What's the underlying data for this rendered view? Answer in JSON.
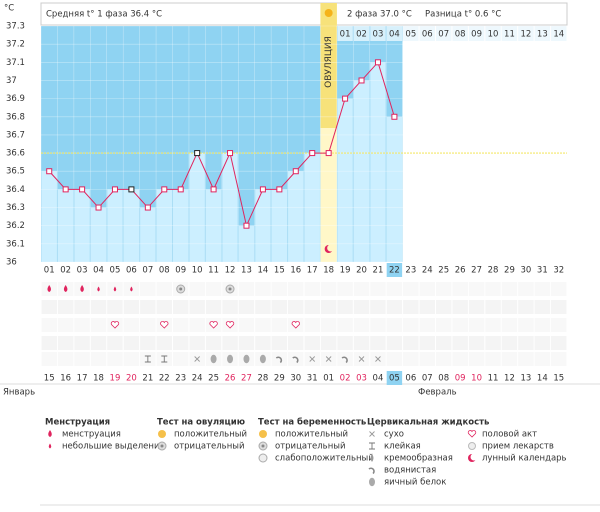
{
  "chart_data": {
    "type": "line",
    "y_label": "°C",
    "header": {
      "phase1": "Средняя t° 1 фаза 36.4 °C",
      "phase2": "2 фаза 37.0 °C",
      "difference": "Разница t° 0.6 °C"
    },
    "ovulation_label": "ОВУЛЯЦИЯ",
    "ovulation_day": 18,
    "coverline": 36.6,
    "categories": [
      "01",
      "02",
      "03",
      "04",
      "05",
      "06",
      "07",
      "08",
      "09",
      "10",
      "11",
      "12",
      "13",
      "14",
      "15",
      "16",
      "17",
      "18",
      "19",
      "20",
      "21",
      "22",
      "23",
      "24",
      "25",
      "26",
      "27",
      "28",
      "29",
      "30",
      "31",
      "32"
    ],
    "values": [
      36.5,
      36.4,
      36.4,
      36.3,
      36.4,
      36.4,
      36.3,
      36.4,
      36.4,
      36.6,
      36.4,
      36.6,
      36.2,
      36.4,
      36.4,
      36.5,
      36.6,
      36.6,
      36.9,
      37.0,
      37.1,
      36.8,
      null,
      null,
      null,
      null,
      null,
      null,
      null,
      null,
      null,
      null
    ],
    "phase2_days": [
      "01",
      "02",
      "03",
      "04",
      "05",
      "06",
      "07",
      "08",
      "09",
      "10",
      "11",
      "12",
      "13",
      "14"
    ],
    "ylim": [
      36,
      37.3
    ],
    "yticks": [
      36,
      36.1,
      36.2,
      36.3,
      36.4,
      36.5,
      36.6,
      36.7,
      36.8,
      36.9,
      37,
      37.1,
      37.2,
      37.3
    ],
    "dates": [
      "15",
      "16",
      "17",
      "18",
      "19",
      "20",
      "21",
      "22",
      "23",
      "24",
      "25",
      "26",
      "27",
      "28",
      "29",
      "30",
      "31",
      "01",
      "02",
      "03",
      "04",
      "05",
      "06",
      "07",
      "08",
      "09",
      "10",
      "11",
      "12",
      "13",
      "14",
      "15"
    ],
    "date_colors": [
      "#333",
      "#333",
      "#333",
      "#333",
      "#e0245e",
      "#e0245e",
      "#333",
      "#333",
      "#333",
      "#333",
      "#333",
      "#e0245e",
      "#e0245e",
      "#333",
      "#333",
      "#333",
      "#333",
      "#333",
      "#e0245e",
      "#e0245e",
      "#333",
      "#333",
      "#333",
      "#333",
      "#333",
      "#e0245e",
      "#e0245e",
      "#333",
      "#333",
      "#333",
      "#333",
      "#333"
    ],
    "months": [
      "Январь",
      "Февраль"
    ],
    "legend": [
      {
        "title": "Менструация",
        "items": [
          "менструация",
          "небольшие выделения"
        ]
      },
      {
        "title": "Тест на овуляцию",
        "items": [
          "положительный",
          "отрицательный"
        ]
      },
      {
        "title": "Тест на беременность",
        "items": [
          "положительный",
          "отрицательный",
          "слабоположительный"
        ]
      },
      {
        "title": "Цервикальная жидкость",
        "items": [
          "сухо",
          "клейкая",
          "кремообразная",
          "водянистая",
          "яичный белок"
        ]
      }
    ],
    "legend_extra": [
      "половой акт",
      "прием лекарств",
      "лунный календарь"
    ]
  }
}
